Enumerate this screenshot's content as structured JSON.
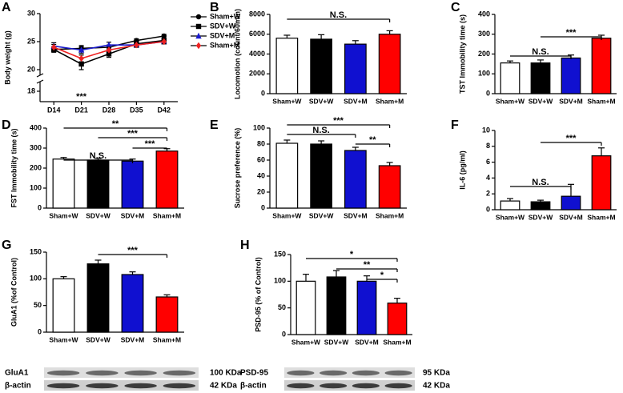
{
  "chart_data": [
    {
      "panel": "A",
      "type": "line",
      "y_label": "Body weight (g)",
      "categories": [
        "D14",
        "D21",
        "D28",
        "D35",
        "D42"
      ],
      "series": [
        {
          "name": "Sham+W",
          "color": "#000000",
          "marker": "circle",
          "values": [
            23.6,
            23.8,
            24.0,
            25.2,
            26.0
          ],
          "errors": [
            0.4,
            0.5,
            0.4,
            0.3,
            0.3
          ]
        },
        {
          "name": "SDV+W",
          "color": "#000000",
          "marker": "square",
          "values": [
            23.6,
            21.0,
            22.8,
            24.6,
            25.2
          ],
          "errors": [
            0.5,
            1.0,
            0.6,
            0.4,
            0.3
          ]
        },
        {
          "name": "SDV+M",
          "color": "#1a1acc",
          "marker": "triangle",
          "values": [
            24.2,
            23.5,
            24.4,
            24.4,
            25.0
          ],
          "errors": [
            0.6,
            0.6,
            0.5,
            0.4,
            0.4
          ]
        },
        {
          "name": "Sham+M",
          "color": "#ee2222",
          "marker": "diamond",
          "values": [
            24.0,
            22.0,
            23.5,
            24.4,
            25.0
          ],
          "errors": [
            0.5,
            0.6,
            0.5,
            0.4,
            0.4
          ]
        }
      ],
      "ylim": [
        18,
        30
      ],
      "yticks": [
        18,
        20,
        25,
        30
      ],
      "axis_break": true,
      "annotations": [
        "***"
      ]
    },
    {
      "panel": "B",
      "type": "bar",
      "y_label": "Locomotion (count/60min)",
      "categories": [
        "Sham+W",
        "SDV+W",
        "SDV+M",
        "Sham+M"
      ],
      "values": [
        5600,
        5500,
        5000,
        6000
      ],
      "errors": [
        300,
        450,
        350,
        350
      ],
      "colors": [
        "#ffffff",
        "#000000",
        "#1010d0",
        "#ff0000"
      ],
      "ylim": [
        0,
        8000
      ],
      "yticks": [
        0,
        2000,
        4000,
        6000,
        8000
      ],
      "annotations": [
        "N.S."
      ]
    },
    {
      "panel": "C",
      "type": "bar",
      "y_label": "TST Immobility time (s)",
      "categories": [
        "Sham+W",
        "SDV+W",
        "SDV+M",
        "Sham+M"
      ],
      "values": [
        155,
        155,
        180,
        280
      ],
      "errors": [
        10,
        15,
        15,
        15
      ],
      "colors": [
        "#ffffff",
        "#000000",
        "#1010d0",
        "#ff0000"
      ],
      "ylim": [
        0,
        400
      ],
      "yticks": [
        0,
        100,
        200,
        300,
        400
      ],
      "annotations": [
        "***",
        "N.S."
      ]
    },
    {
      "panel": "D",
      "type": "bar",
      "y_label": "FST Immobility time (s)",
      "categories": [
        "Sham+W",
        "SDV+W",
        "SDV+M",
        "Sham+M"
      ],
      "values": [
        245,
        240,
        235,
        285
      ],
      "errors": [
        8,
        8,
        10,
        12
      ],
      "colors": [
        "#ffffff",
        "#000000",
        "#1010d0",
        "#ff0000"
      ],
      "ylim": [
        0,
        400
      ],
      "yticks": [
        0,
        100,
        200,
        300,
        400
      ],
      "annotations": [
        "**",
        "***",
        "***",
        "N.S."
      ]
    },
    {
      "panel": "E",
      "type": "bar",
      "y_label": "Sucrose preference (%)",
      "categories": [
        "Sham+W",
        "SDV+W",
        "SDV+M",
        "Sham+M"
      ],
      "values": [
        81,
        80,
        72,
        53
      ],
      "errors": [
        4,
        4,
        4,
        4
      ],
      "colors": [
        "#ffffff",
        "#000000",
        "#1010d0",
        "#ff0000"
      ],
      "ylim": [
        0,
        100
      ],
      "yticks": [
        0,
        20,
        40,
        60,
        80,
        100
      ],
      "annotations": [
        "***",
        "N.S.",
        "**"
      ]
    },
    {
      "panel": "F",
      "type": "bar",
      "y_label": "IL-6 (pg/ml)",
      "categories": [
        "Sham+W",
        "SDV+W",
        "SDV+M",
        "Sham+M"
      ],
      "values": [
        1.1,
        1.0,
        1.7,
        6.8
      ],
      "errors": [
        0.3,
        0.2,
        1.5,
        1.0
      ],
      "colors": [
        "#ffffff",
        "#000000",
        "#1010d0",
        "#ff0000"
      ],
      "ylim": [
        0,
        10
      ],
      "yticks": [
        0,
        2,
        4,
        6,
        8,
        10
      ],
      "annotations": [
        "***",
        "N.S."
      ]
    },
    {
      "panel": "G",
      "type": "bar",
      "y_label": "GluA1 (%of Control)",
      "categories": [
        "Sham+W",
        "SDV+W",
        "SDV+M",
        "Sham+M"
      ],
      "values": [
        100,
        128,
        108,
        66
      ],
      "errors": [
        4,
        7,
        5,
        4
      ],
      "colors": [
        "#ffffff",
        "#000000",
        "#1010d0",
        "#ff0000"
      ],
      "ylim": [
        0,
        150
      ],
      "yticks": [
        0,
        50,
        100,
        150
      ],
      "annotations": [
        "***"
      ],
      "blot": {
        "bands": [
          "GluA1",
          "β-actin"
        ],
        "sizes": [
          "100 KDa",
          "42 KDa"
        ]
      }
    },
    {
      "panel": "H",
      "type": "bar",
      "y_label": "PSD-95 (% of Control)",
      "categories": [
        "Sham+W",
        "SDV+W",
        "SDV+M",
        "Sham+M"
      ],
      "values": [
        100,
        108,
        100,
        59
      ],
      "errors": [
        13,
        12,
        10,
        9
      ],
      "colors": [
        "#ffffff",
        "#000000",
        "#1010d0",
        "#ff0000"
      ],
      "ylim": [
        0,
        150
      ],
      "yticks": [
        0,
        50,
        100,
        150
      ],
      "annotations": [
        "*",
        "**",
        "*"
      ],
      "blot": {
        "bands": [
          "PSD-95",
          "β-actin"
        ],
        "sizes": [
          "95 KDa",
          "42 KDa"
        ]
      }
    }
  ]
}
